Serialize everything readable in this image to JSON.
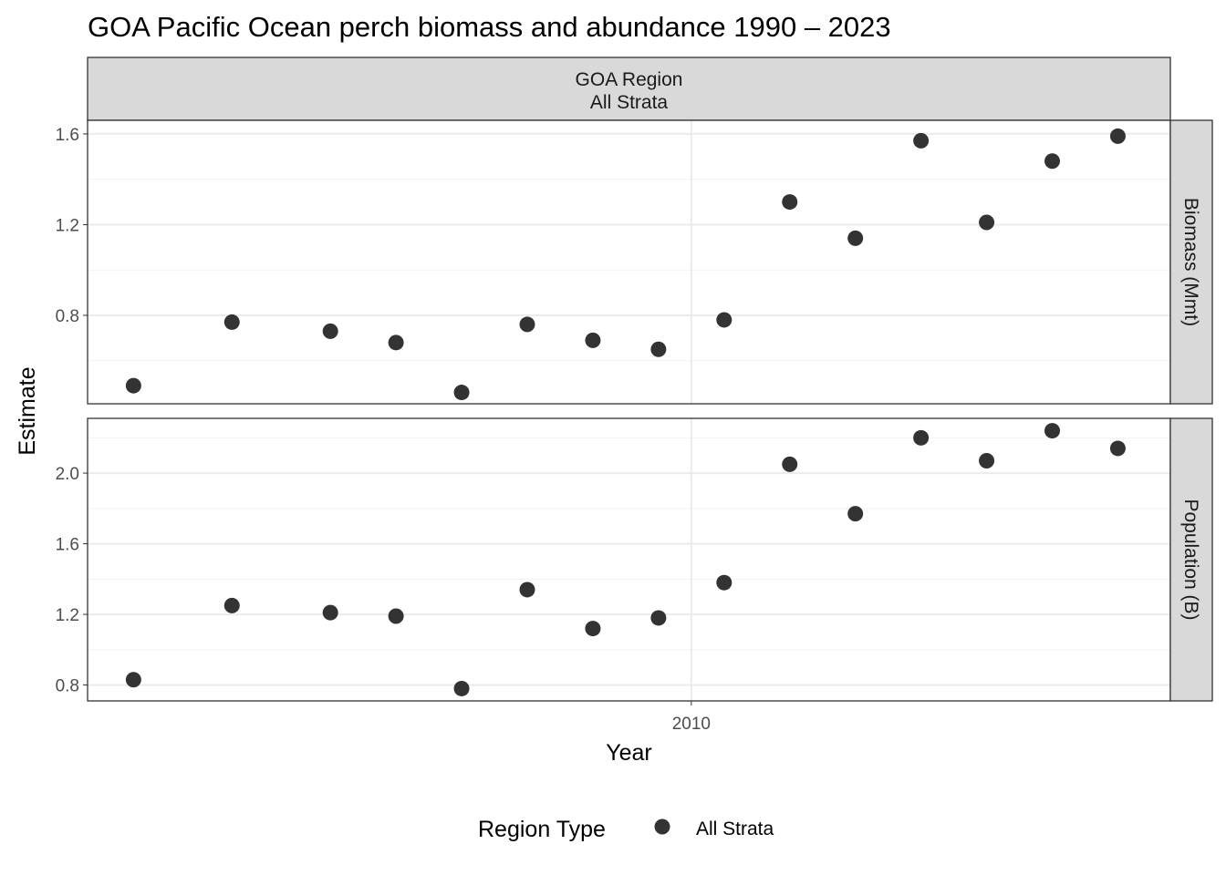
{
  "chart_data": {
    "type": "scatter",
    "title": "GOA Pacific Ocean perch biomass and abundance 1990 – 2023",
    "xlabel": "Year",
    "ylabel": "Estimate",
    "x_ticks": [
      2010
    ],
    "x_range": [
      1991.6,
      2024.6
    ],
    "column_strip": [
      "GOA Region",
      "All Strata"
    ],
    "legend": {
      "title": "Region Type",
      "entries": [
        "All Strata"
      ],
      "position": "bottom"
    },
    "grid": true,
    "marker_color": "#333333",
    "facets": [
      {
        "strip": "Biomass (Mmt)",
        "y_range": [
          0.41,
          1.66
        ],
        "y_ticks": [
          0.8,
          1.2,
          1.6
        ],
        "x": [
          1993,
          1996,
          1999,
          2001,
          2003,
          2005,
          2007,
          2009,
          2011,
          2013,
          2015,
          2017,
          2019,
          2021,
          2023
        ],
        "y": [
          0.49,
          0.77,
          0.73,
          0.68,
          0.46,
          0.76,
          0.69,
          0.65,
          0.78,
          1.3,
          1.14,
          1.57,
          1.21,
          1.48,
          1.59
        ]
      },
      {
        "strip": "Population (B)",
        "y_range": [
          0.71,
          2.31
        ],
        "y_ticks": [
          0.8,
          1.2,
          1.6,
          2.0
        ],
        "x": [
          1993,
          1996,
          1999,
          2001,
          2003,
          2005,
          2007,
          2009,
          2011,
          2013,
          2015,
          2017,
          2019,
          2021,
          2023
        ],
        "y": [
          0.83,
          1.25,
          1.21,
          1.19,
          0.78,
          1.34,
          1.12,
          1.18,
          1.38,
          2.05,
          1.77,
          2.2,
          2.07,
          2.24,
          2.14
        ]
      }
    ]
  }
}
